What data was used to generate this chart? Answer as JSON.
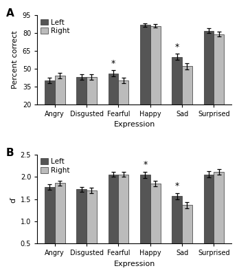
{
  "categories": [
    "Angry",
    "Disgusted",
    "Fearful",
    "Happy",
    "Sad",
    "Surprised"
  ],
  "panel_A": {
    "title": "A",
    "ylabel": "Percent correct",
    "xlabel": "Expression",
    "ylim": [
      20,
      95
    ],
    "yticks": [
      20,
      35,
      50,
      65,
      80,
      95
    ],
    "left_values": [
      40,
      43,
      46,
      87,
      60,
      82
    ],
    "right_values": [
      44,
      43,
      40,
      86,
      52,
      79
    ],
    "left_errors": [
      2.5,
      2.5,
      2.5,
      1.5,
      2.5,
      2.0
    ],
    "right_errors": [
      2.5,
      2.5,
      2.5,
      1.5,
      2.5,
      2.0
    ],
    "sig_markers": [
      false,
      false,
      true,
      false,
      true,
      false
    ],
    "sig_positions": [
      "left",
      null,
      "left",
      null,
      "left",
      null
    ]
  },
  "panel_B": {
    "title": "B",
    "ylabel": "d′",
    "xlabel": "Expression",
    "ylim": [
      0.5,
      2.5
    ],
    "yticks": [
      0.5,
      1.0,
      1.5,
      2.0,
      2.5
    ],
    "left_values": [
      1.77,
      1.72,
      2.06,
      2.05,
      1.57,
      2.06
    ],
    "right_values": [
      1.86,
      1.7,
      2.06,
      1.85,
      1.37,
      2.12
    ],
    "left_errors": [
      0.06,
      0.06,
      0.06,
      0.07,
      0.07,
      0.07
    ],
    "right_errors": [
      0.06,
      0.06,
      0.06,
      0.06,
      0.07,
      0.06
    ],
    "sig_markers": [
      false,
      false,
      false,
      true,
      true,
      false
    ],
    "sig_positions": [
      null,
      null,
      null,
      "left",
      "left",
      null
    ]
  },
  "left_color": "#555555",
  "right_color": "#bbbbbb",
  "bar_width": 0.32,
  "legend_left_label": "Left",
  "legend_right_label": "Right",
  "figure_width": 3.48,
  "figure_height": 4.0,
  "dpi": 100
}
